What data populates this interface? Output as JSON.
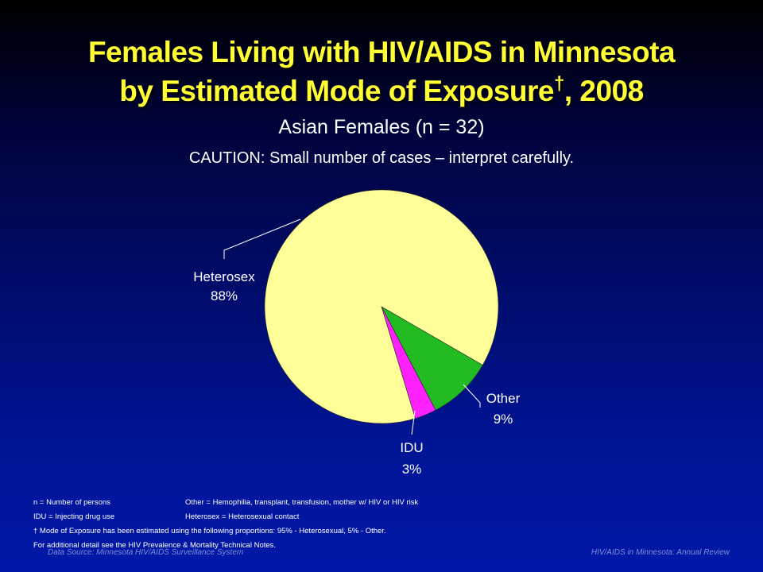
{
  "title": {
    "line1": "Females Living with HIV/AIDS in Minnesota",
    "line2": "by Estimated Mode of Exposure",
    "dagger": "†",
    "line2_suffix": ", 2008"
  },
  "subtitle": "Asian Females (n = 32)",
  "caution": "CAUTION: Small number of cases – interpret carefully.",
  "chart_data": {
    "type": "pie",
    "title": "Asian Females (n = 32)",
    "slices": [
      {
        "label": "Heterosex",
        "value": 88,
        "value_label": "88%",
        "color": "#ffff99"
      },
      {
        "label": "Other",
        "value": 9,
        "value_label": "9%",
        "color": "#22bb22"
      },
      {
        "label": "IDU",
        "value": 3,
        "value_label": "3%",
        "color": "#ff22ff"
      }
    ],
    "legend": "none"
  },
  "notes": {
    "n_def": "n = Number of persons",
    "other_def": "Other = Hemophilia, transplant, transfusion, mother w/ HIV or HIV risk",
    "idu_def": "IDU = Injecting drug use",
    "heterosex_def": "Heterosex = Heterosexual contact",
    "dagger_note": "† Mode of Exposure has been estimated using the following proportions: 95% - Heterosexual, 5% - Other.",
    "detail_note": "For additional detail see the HIV Prevalence & Mortality Technical Notes."
  },
  "footer": {
    "source": "Data Source:  Minnesota HIV/AIDS Surveillance  System",
    "review": "HIV/AIDS in Minnesota: Annual Review"
  }
}
